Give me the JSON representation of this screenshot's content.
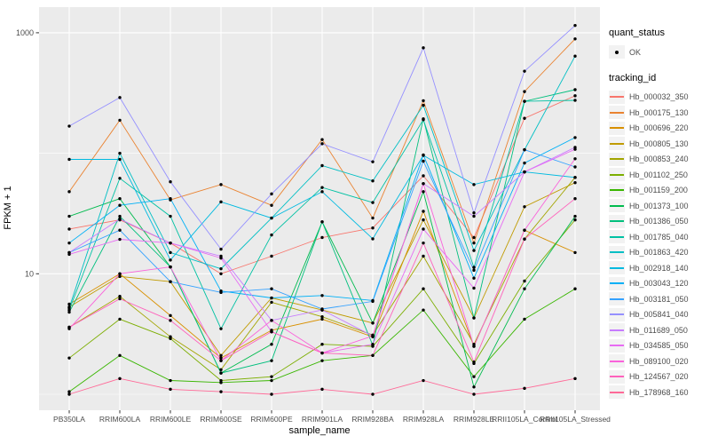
{
  "figure": {
    "background": "#FFFFFF",
    "panel_fill": "#EBEBEB",
    "grid_color": "#FFFFFF",
    "tick_text_color": "#4D4D4D",
    "title_text_color": "#000000",
    "point_color": "#000000",
    "legend_key_fill": "#F2F2F2"
  },
  "axes": {
    "x": {
      "label": "sample_name"
    },
    "y": {
      "label": "FPKM + 1",
      "tick_labels": [
        "1000",
        "10"
      ],
      "tick_values": [
        1000,
        10
      ]
    }
  },
  "legend": {
    "quant_status": {
      "title": "quant_status",
      "items": [
        {
          "label": "OK",
          "symbol": "point"
        }
      ]
    },
    "tracking_id": {
      "title": "tracking_id"
    }
  },
  "chart_data": {
    "type": "line",
    "title": "",
    "xlabel": "sample_name",
    "ylabel": "FPKM + 1",
    "y_scale": "log10",
    "ylim": [
      1,
      1300
    ],
    "y_ticks": [
      10,
      1000
    ],
    "y_gridlines_major": [
      10,
      1000
    ],
    "y_gridlines_minor": [
      1,
      100
    ],
    "grid": true,
    "legend_position": "right",
    "point_shape": "filled-black-circle",
    "categories": [
      "PB350LA",
      "RRIM600LA",
      "RRIM600LE",
      "RRIM600SE",
      "RRIM600PE",
      "RRIM901LA",
      "RRIM928BA",
      "RRIM928LA",
      "RRIM928LE",
      "RRII105LA_Control",
      "RRII105LA_Stressed"
    ],
    "series": [
      {
        "name": "Hb_000032_350",
        "color": "#F8766D",
        "values": [
          23.5,
          28,
          18,
          10,
          14,
          20,
          24,
          65,
          20,
          195,
          300
        ]
      },
      {
        "name": "Hb_000175_130",
        "color": "#EA8331",
        "values": [
          48,
          188,
          41,
          55,
          37,
          130,
          29,
          273,
          18,
          325,
          890
        ]
      },
      {
        "name": "Hb_000696_220",
        "color": "#D89000",
        "values": [
          5.6,
          10,
          4.5,
          2.0,
          3.4,
          4.2,
          3.0,
          33,
          2.5,
          23,
          15
        ]
      },
      {
        "name": "Hb_000805_130",
        "color": "#C09B00",
        "values": [
          5.3,
          9.5,
          8.6,
          2.1,
          6.3,
          5.0,
          3.9,
          28,
          4.3,
          36,
          57
        ]
      },
      {
        "name": "Hb_000853_240",
        "color": "#A3A500",
        "values": [
          3.6,
          6.5,
          3.0,
          1.6,
          5.8,
          4.4,
          3.1,
          14,
          2.6,
          19.4,
          63
        ]
      },
      {
        "name": "Hb_001102_250",
        "color": "#7CAE00",
        "values": [
          2.0,
          4.2,
          2.9,
          1.3,
          1.4,
          2.6,
          2.5,
          7.5,
          1.8,
          8.7,
          28
        ]
      },
      {
        "name": "Hb_001159_200",
        "color": "#39B600",
        "values": [
          1.05,
          2.1,
          1.3,
          1.25,
          1.3,
          1.9,
          2.1,
          5.0,
          1.4,
          4.2,
          7.5
        ]
      },
      {
        "name": "Hb_001373_100",
        "color": "#00BB4E",
        "values": [
          30,
          42,
          11.4,
          1.5,
          2.6,
          27,
          3.9,
          48,
          1.15,
          7.5,
          30
        ]
      },
      {
        "name": "Hb_001386_050",
        "color": "#00BF7D",
        "values": [
          4.8,
          30,
          11.4,
          1.5,
          1.9,
          27,
          2.55,
          193,
          4.3,
          270,
          337
        ]
      },
      {
        "name": "Hb_001785_040",
        "color": "#00C1A3",
        "values": [
          5.0,
          62,
          30,
          3.5,
          21,
          52,
          39,
          190,
          11.3,
          270,
          275
        ]
      },
      {
        "name": "Hb_001863_420",
        "color": "#00BFC4",
        "values": [
          5.2,
          100,
          15,
          11,
          29,
          79,
          59,
          250,
          15.6,
          107,
          640
        ]
      },
      {
        "name": "Hb_002918_140",
        "color": "#00BAE0",
        "values": [
          89,
          89,
          13,
          39.5,
          29,
          48,
          19.5,
          96,
          55,
          70,
          63
        ]
      },
      {
        "name": "Hb_003043_120",
        "color": "#00B0F6",
        "values": [
          18,
          37,
          42,
          7.2,
          6.3,
          6.6,
          6.0,
          97,
          9.2,
          83,
          135
        ]
      },
      {
        "name": "Hb_003181_050",
        "color": "#35A2FF",
        "values": [
          15,
          23,
          8.6,
          7.0,
          7.5,
          5.1,
          5.9,
          86,
          10.7,
          107,
          77
        ]
      },
      {
        "name": "Hb_005841_040",
        "color": "#9590FF",
        "values": [
          168,
          290,
          58,
          16,
          46,
          120,
          85,
          750,
          32,
          480,
          1150
        ]
      },
      {
        "name": "Hb_011689_050",
        "color": "#C77CFF",
        "values": [
          15,
          28.5,
          18,
          14,
          4.1,
          5.0,
          3.05,
          56,
          30,
          70,
          112
        ]
      },
      {
        "name": "Hb_034585_050",
        "color": "#E76BF3",
        "values": [
          14.5,
          19.3,
          18,
          13.5,
          3.3,
          2.2,
          2.6,
          23.5,
          7.6,
          70,
          108
        ]
      },
      {
        "name": "Hb_089100_020",
        "color": "#FA62DB",
        "values": [
          3.5,
          10,
          11.4,
          1.9,
          4.1,
          2.2,
          3.05,
          56,
          2.5,
          23,
          90
        ]
      },
      {
        "name": "Hb_124567_020",
        "color": "#FF62BC",
        "values": [
          3.6,
          6.2,
          4.1,
          1.9,
          3.3,
          2.2,
          2.1,
          18,
          1.85,
          19.4,
          42
        ]
      },
      {
        "name": "Hb_178968_160",
        "color": "#FF6A98",
        "values": [
          1.0,
          1.35,
          1.1,
          1.05,
          1.0,
          1.1,
          1.0,
          1.3,
          1.0,
          1.12,
          1.35
        ]
      }
    ]
  }
}
